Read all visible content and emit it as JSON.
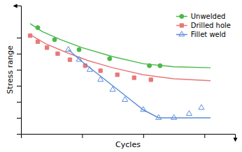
{
  "chart_data": {
    "type": "line",
    "xlabel": "Cycles",
    "ylabel": "Stress range",
    "xlim": [
      0,
      7.0
    ],
    "ylim": [
      3.8,
      10.2
    ],
    "xticks": [
      2.0,
      4.0,
      6.0
    ],
    "yticks": [
      4.6,
      5.4,
      6.2,
      7.0,
      7.8,
      8.6
    ],
    "tick_labels": false,
    "grid": false,
    "legend": "upper right",
    "series": [
      {
        "type": "line",
        "color": "#4ab84a",
        "x": [
          0.3,
          0.7,
          1.3,
          2.0,
          3.0,
          4.0,
          5.0,
          6.2
        ],
        "values": [
          9.3,
          8.9,
          8.5,
          8.1,
          7.65,
          7.3,
          7.15,
          7.1
        ]
      },
      {
        "type": "scatter",
        "name": "Unwelded",
        "color": "#4ab84a",
        "marker": "circle",
        "x": [
          0.55,
          1.1,
          1.9,
          2.9,
          4.2,
          4.55
        ],
        "values": [
          9.1,
          8.5,
          8.0,
          7.55,
          7.2,
          7.2
        ]
      },
      {
        "type": "line",
        "color": "#e87878",
        "x": [
          0.3,
          0.8,
          1.5,
          2.2,
          3.0,
          4.0,
          5.0,
          6.2
        ],
        "values": [
          8.75,
          8.3,
          7.85,
          7.45,
          7.1,
          6.75,
          6.55,
          6.45
        ]
      },
      {
        "type": "scatter",
        "name": "Drilled hole",
        "color": "#e87878",
        "marker": "square",
        "x": [
          0.3,
          0.55,
          0.85,
          1.2,
          1.6,
          2.1,
          2.6,
          3.15,
          3.7,
          4.25
        ],
        "values": [
          8.7,
          8.4,
          8.1,
          7.8,
          7.5,
          7.2,
          6.95,
          6.75,
          6.6,
          6.5
        ]
      },
      {
        "type": "line",
        "color": "#5b8dd9",
        "x": [
          1.55,
          2.0,
          2.5,
          3.0,
          3.5,
          4.0,
          4.5,
          6.2
        ],
        "values": [
          8.0,
          7.4,
          6.8,
          6.2,
          5.6,
          5.0,
          4.6,
          4.6
        ]
      },
      {
        "type": "scatter",
        "name": "Fillet weld",
        "color": "#5b8dd9",
        "marker": "triangle-open",
        "x": [
          1.55,
          1.9,
          2.25,
          2.6,
          3.0,
          3.4,
          4.0,
          4.5,
          5.0,
          5.5,
          5.9
        ],
        "values": [
          8.0,
          7.5,
          7.0,
          6.5,
          6.0,
          5.5,
          5.0,
          4.6,
          4.6,
          4.8,
          5.1
        ]
      }
    ]
  }
}
